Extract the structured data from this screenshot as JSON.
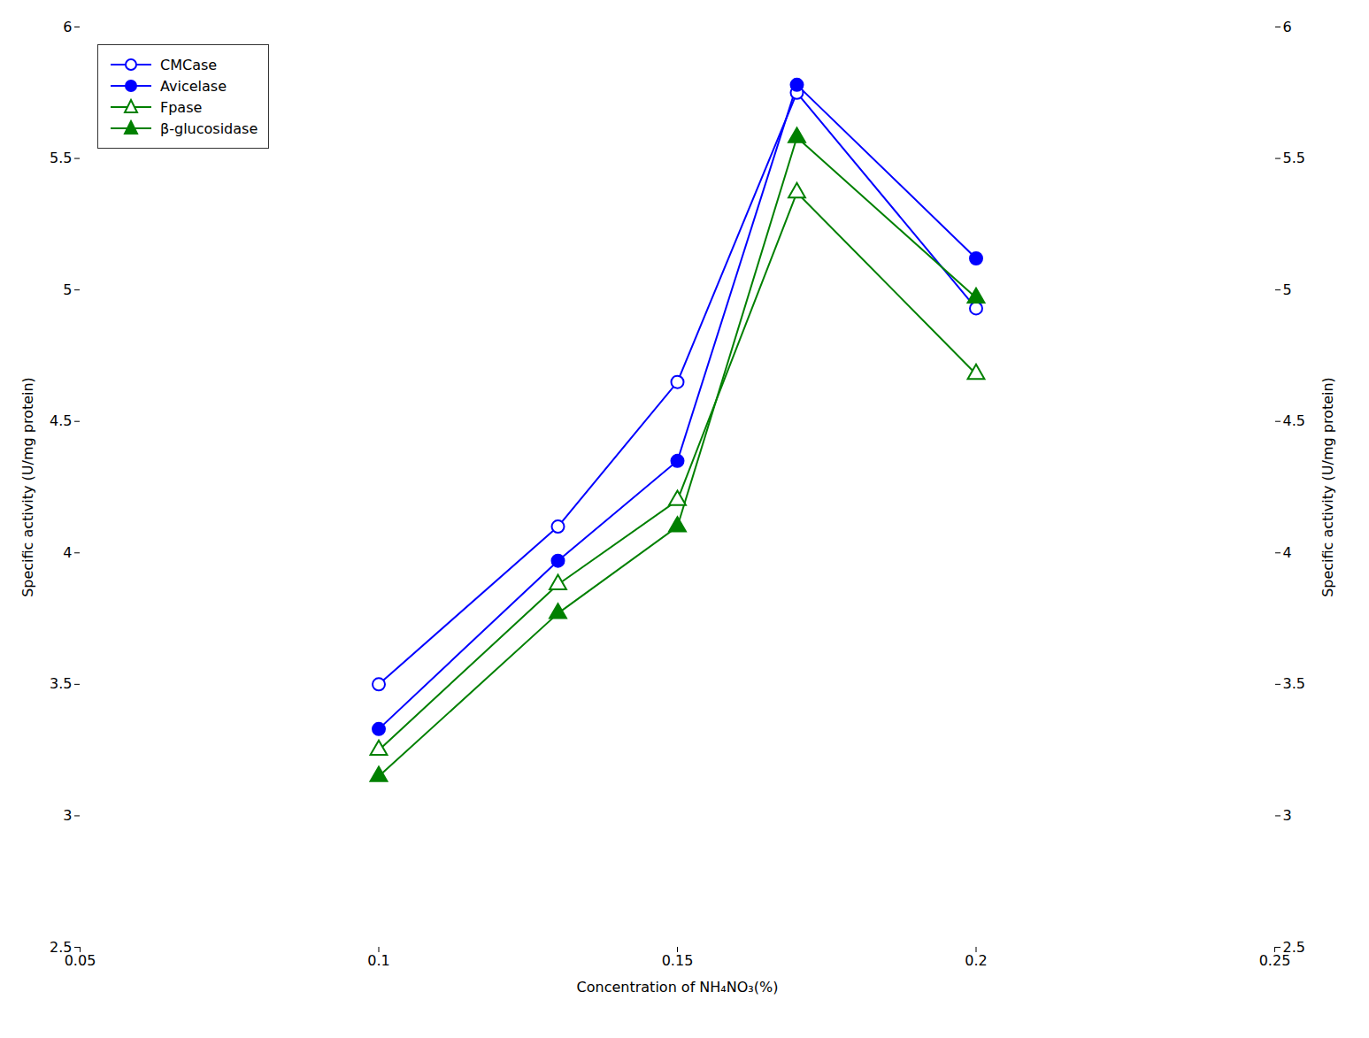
{
  "chart_data": {
    "type": "line",
    "x": [
      0.1,
      0.13,
      0.15,
      0.17,
      0.2
    ],
    "series": [
      {
        "name": "CMCase",
        "color": "#0000FF",
        "marker": "circle-open",
        "values": [
          3.5,
          4.1,
          4.65,
          5.75,
          4.93
        ]
      },
      {
        "name": "Avicelase",
        "color": "#0000FF",
        "marker": "circle",
        "values": [
          3.33,
          3.97,
          4.35,
          5.78,
          5.12
        ]
      },
      {
        "name": "Fpase",
        "color": "#008000",
        "marker": "triangle-open",
        "values": [
          3.25,
          3.88,
          4.2,
          5.37,
          4.68
        ]
      },
      {
        "name": "β-glucosidase",
        "color": "#008000",
        "marker": "triangle",
        "values": [
          3.15,
          3.77,
          4.1,
          5.58,
          4.97
        ]
      }
    ],
    "xlabel": "Concentration of NH₄NO₃(%)",
    "ylabel": "Specific activity (U/mg protein)",
    "y2label": "Specific activity (U/mg protein)",
    "xlim": [
      0.05,
      0.25
    ],
    "xticks": [
      0.05,
      0.1,
      0.15,
      0.2,
      0.25
    ],
    "ylim": [
      2.5,
      6.0
    ],
    "yticks": [
      2.5,
      3,
      3.5,
      4,
      4.5,
      5,
      5.5,
      6
    ],
    "y2lim": [
      2.5,
      6.0
    ],
    "y2ticks": [
      2.5,
      3,
      3.5,
      4,
      4.5,
      5,
      5.5,
      6
    ],
    "legend": "upper left",
    "grid": false
  }
}
